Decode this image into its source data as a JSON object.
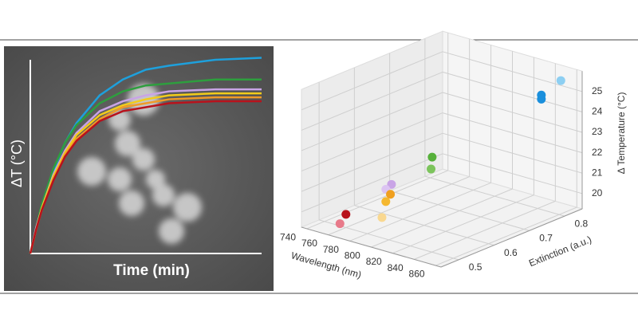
{
  "chart_data": [
    {
      "type": "line",
      "ylabel": "ΔT (°C)",
      "xlabel": "Time (min)",
      "x": [
        0,
        0.25,
        0.5,
        1,
        1.5,
        2,
        3,
        4,
        5,
        6,
        8,
        10
      ],
      "xlim": [
        0,
        10
      ],
      "ylim": [
        0,
        100
      ],
      "series": [
        {
          "color": "#1ea0dc",
          "values": [
            0,
            13,
            24,
            42,
            56,
            66,
            80,
            88,
            93,
            95,
            98,
            99
          ]
        },
        {
          "color": "#2e9e3e",
          "values": [
            0,
            13,
            25,
            43,
            56,
            65,
            76,
            82,
            85,
            86,
            88,
            88
          ]
        },
        {
          "color": "#c9a4e6",
          "values": [
            0,
            13,
            23,
            40,
            52,
            61,
            72,
            77,
            80,
            82,
            83,
            83
          ]
        },
        {
          "color": "#f2cc1a",
          "values": [
            0,
            12,
            23,
            39,
            51,
            60,
            70,
            75,
            78,
            80,
            81,
            81
          ]
        },
        {
          "color": "#f09a28",
          "values": [
            0,
            12,
            22,
            38,
            50,
            58,
            68,
            74,
            76,
            78,
            79,
            79
          ]
        },
        {
          "color": "#b8121c",
          "values": [
            0,
            12,
            22,
            37,
            49,
            57,
            67,
            72,
            74,
            76,
            77,
            77
          ]
        }
      ]
    },
    {
      "type": "scatter3d",
      "xlabel": "Wavelength (nm)",
      "ylabel": "Extinction (a.u.)",
      "zlabel": "Δ Temperature (°C)",
      "xlim": [
        735,
        865
      ],
      "ylim": [
        0.45,
        0.85
      ],
      "zlim": [
        19.25,
        26
      ],
      "xticks": [
        740,
        760,
        780,
        800,
        820,
        840,
        860
      ],
      "yticks": [
        0.5,
        0.6,
        0.7,
        0.8
      ],
      "zticks": [
        20,
        21,
        22,
        23,
        24,
        25
      ],
      "x": [
        760,
        761,
        786,
        784,
        785,
        784,
        810,
        791,
        790,
        850,
        850,
        855
      ],
      "y": [
        0.5,
        0.48,
        0.55,
        0.54,
        0.55,
        0.54,
        0.45,
        0.65,
        0.65,
        0.78,
        0.78,
        0.82
      ],
      "z": [
        19.9,
        19.6,
        21.4,
        21.2,
        20.9,
        20.6,
        20.85,
        22.1,
        21.5,
        25.1,
        24.9,
        25.6
      ],
      "colors": [
        "#b8121c",
        "#e87a8a",
        "#c9a4e6",
        "#dcc4f2",
        "#f0a020",
        "#f5b830",
        "#f9d890",
        "#56b03a",
        "#7cc45c",
        "#1a8fdc",
        "#1a8fdc",
        "#8dcff2"
      ]
    }
  ]
}
